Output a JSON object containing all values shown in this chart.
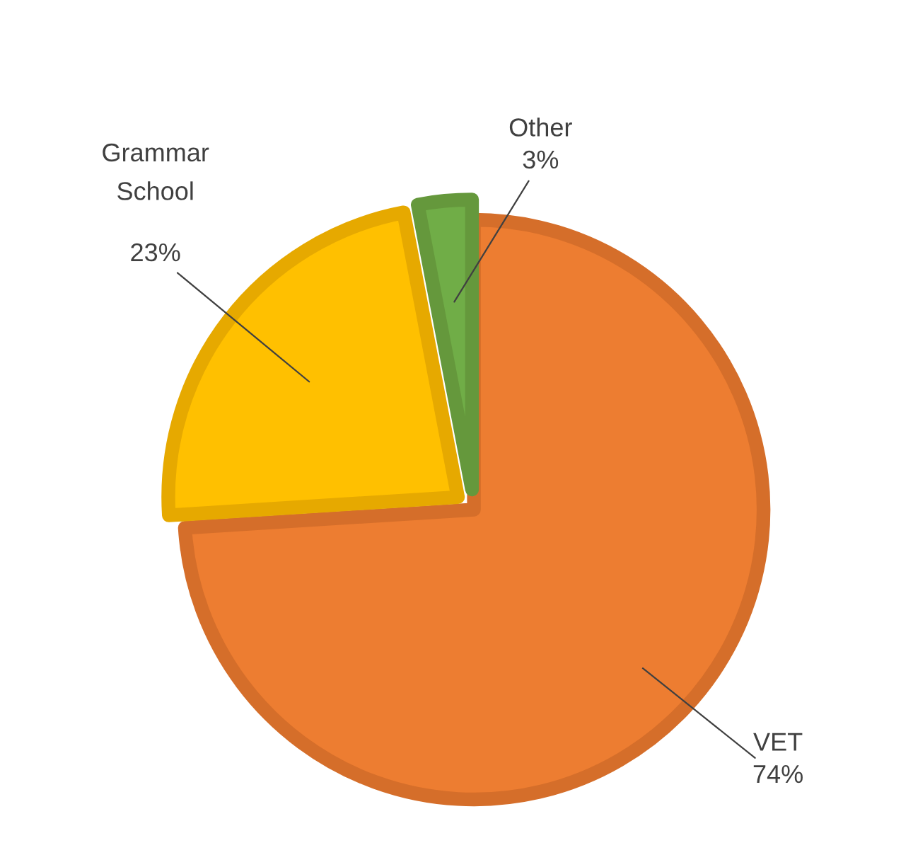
{
  "chart_data": {
    "type": "pie",
    "categories": [
      "VET",
      "Grammar School",
      "Other"
    ],
    "values": [
      74,
      23,
      3
    ],
    "value_labels": [
      "74%",
      "23%",
      "3%"
    ],
    "colors": [
      "#ed7d31",
      "#ffc000",
      "#70ad47"
    ],
    "legend": false
  }
}
